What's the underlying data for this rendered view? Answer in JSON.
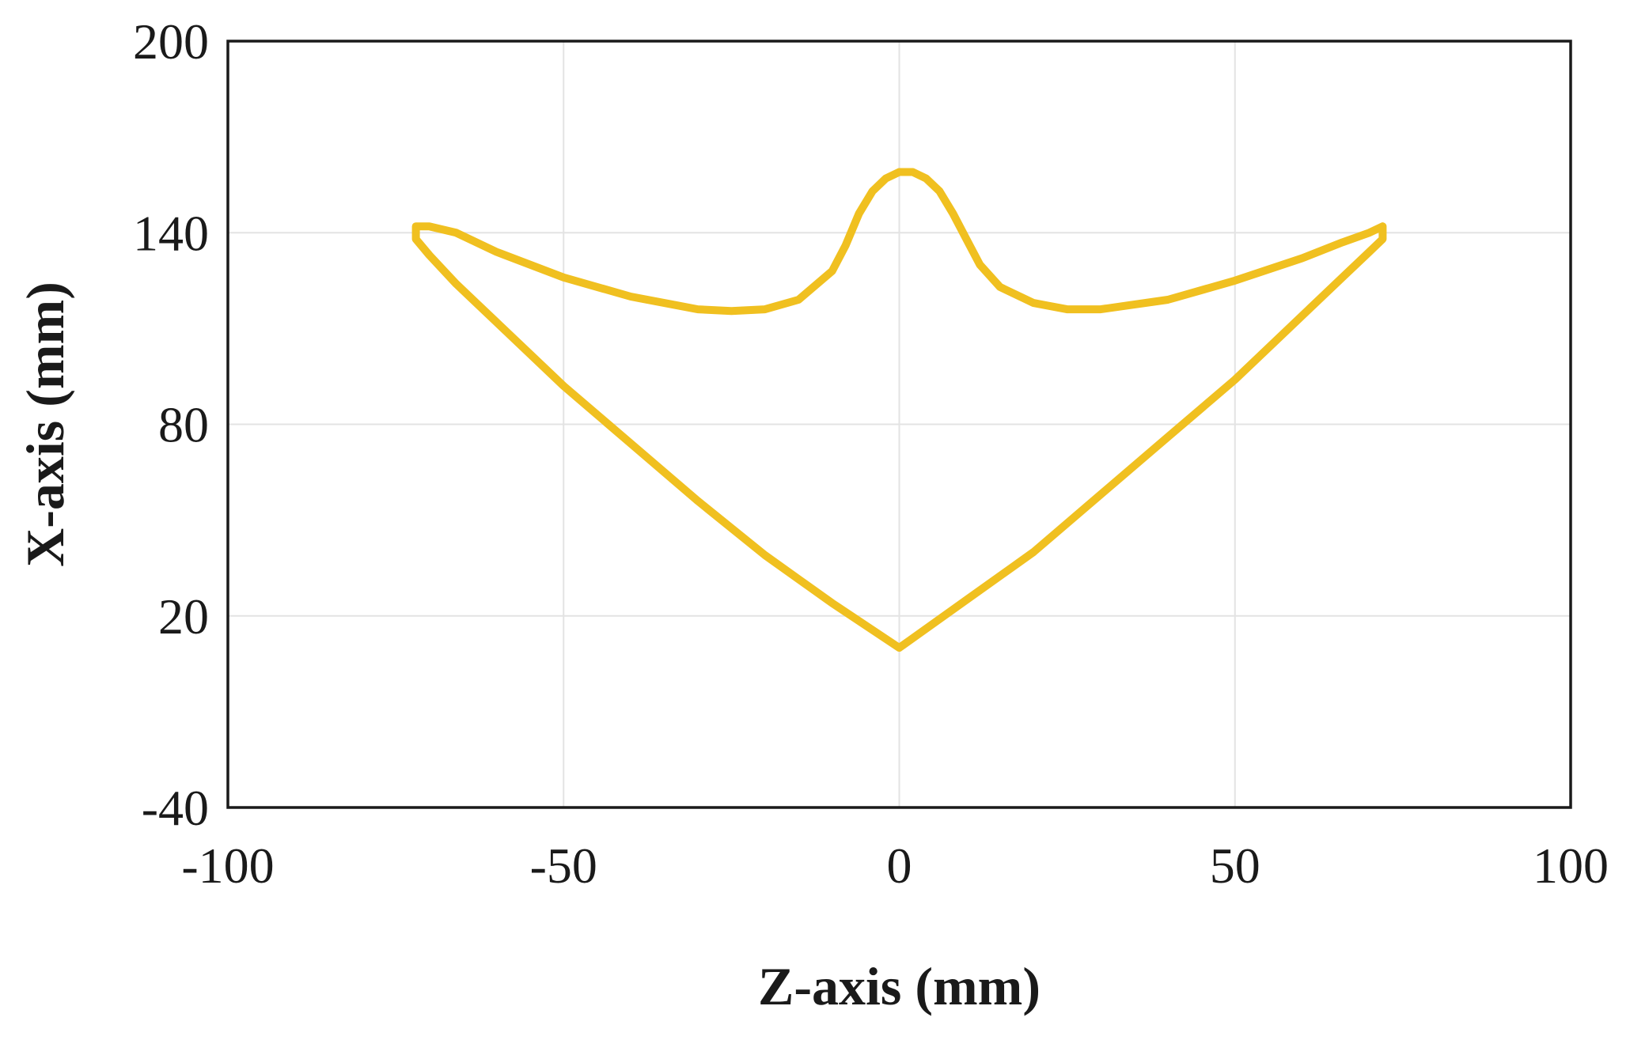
{
  "chart_data": {
    "type": "line",
    "title": "",
    "xlabel": "Z-axis (mm)",
    "ylabel": "X-axis (mm)",
    "xlim": [
      -100,
      100
    ],
    "ylim": [
      -40,
      200
    ],
    "x_ticks": [
      -100,
      -50,
      0,
      50,
      100
    ],
    "y_ticks": [
      -40,
      20,
      80,
      140,
      200
    ],
    "x_tick_labels": [
      "-100",
      "-50",
      "0",
      "50",
      "100"
    ],
    "y_tick_labels": [
      "-40",
      "20",
      "80",
      "140",
      "200"
    ],
    "grid": true,
    "legend": "none",
    "colors": {
      "series": "#f0c020",
      "grid": "#e3e3e3",
      "frame": "#1a1a1a"
    },
    "series": [
      {
        "points": [
          [
            0,
            10
          ],
          [
            -10,
            24
          ],
          [
            -20,
            39
          ],
          [
            -30,
            56
          ],
          [
            -40,
            74
          ],
          [
            -50,
            92
          ],
          [
            -60,
            112
          ],
          [
            -66,
            124
          ],
          [
            -70,
            133
          ],
          [
            -72,
            138
          ],
          [
            -72,
            142
          ],
          [
            -70,
            142
          ],
          [
            -66,
            140
          ],
          [
            -60,
            134
          ],
          [
            -50,
            126
          ],
          [
            -40,
            120
          ],
          [
            -30,
            116
          ],
          [
            -25,
            115.5
          ],
          [
            -20,
            116
          ],
          [
            -15,
            119
          ],
          [
            -10,
            128
          ],
          [
            -8,
            136
          ],
          [
            -6,
            146
          ],
          [
            -4,
            153
          ],
          [
            -2,
            157
          ],
          [
            0,
            159
          ],
          [
            2,
            159
          ],
          [
            4,
            157
          ],
          [
            6,
            153
          ],
          [
            8,
            146
          ],
          [
            10,
            138
          ],
          [
            12,
            130
          ],
          [
            15,
            123
          ],
          [
            20,
            118
          ],
          [
            25,
            116
          ],
          [
            30,
            116
          ],
          [
            40,
            119
          ],
          [
            50,
            125
          ],
          [
            60,
            132
          ],
          [
            66,
            137
          ],
          [
            70,
            140
          ],
          [
            72,
            142
          ],
          [
            72,
            138
          ],
          [
            70,
            134
          ],
          [
            66,
            126
          ],
          [
            60,
            114
          ],
          [
            50,
            94
          ],
          [
            40,
            76
          ],
          [
            30,
            58
          ],
          [
            20,
            40
          ],
          [
            10,
            25
          ],
          [
            0,
            10
          ]
        ]
      }
    ]
  }
}
